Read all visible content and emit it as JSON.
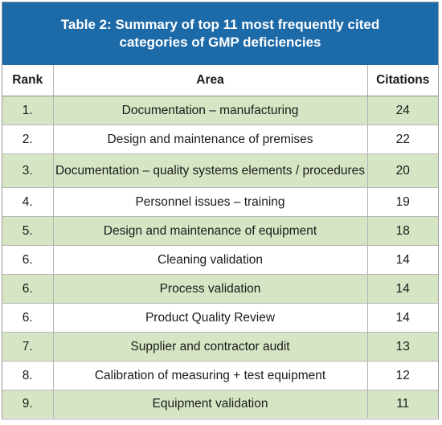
{
  "title": "Table 2: Summary of top 11 most frequently cited\ncategories of GMP deficiencies",
  "colors": {
    "header_bg": "#1d6aa8",
    "shaded_row": "#d6e6c4"
  },
  "headers": {
    "rank": "Rank",
    "area": "Area",
    "citations": "Citations"
  },
  "rows": [
    {
      "rank": "1.",
      "area": "Documentation – manufacturing",
      "citations": "24"
    },
    {
      "rank": "2.",
      "area": "Design and maintenance of premises",
      "citations": "22"
    },
    {
      "rank": "3.",
      "area": "Documentation – quality systems elements / procedures",
      "citations": "20"
    },
    {
      "rank": "4.",
      "area": "Personnel issues – training",
      "citations": "19"
    },
    {
      "rank": "5.",
      "area": "Design and maintenance of equipment",
      "citations": "18"
    },
    {
      "rank": "6.",
      "area": "Cleaning validation",
      "citations": "14"
    },
    {
      "rank": "6.",
      "area": "Process validation",
      "citations": "14"
    },
    {
      "rank": "6.",
      "area": "Product Quality Review",
      "citations": "14"
    },
    {
      "rank": "7.",
      "area": "Supplier and contractor audit",
      "citations": "13"
    },
    {
      "rank": "8.",
      "area": "Calibration of measuring + test equipment",
      "citations": "12"
    },
    {
      "rank": "9.",
      "area": "Equipment validation",
      "citations": "11"
    }
  ]
}
